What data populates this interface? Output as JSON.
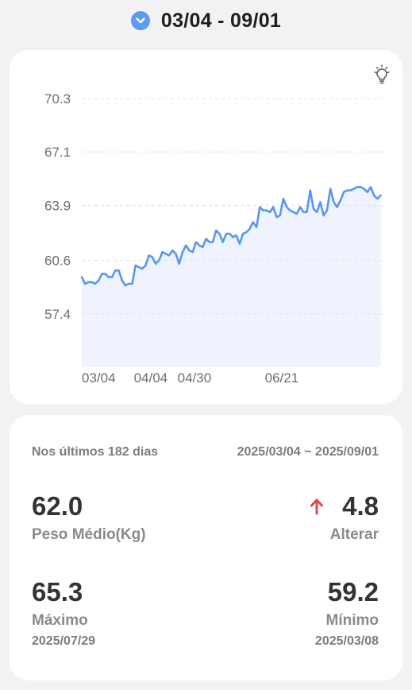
{
  "header": {
    "range_title": "03/04 - 09/01",
    "toggle_icon": "chevron-down-icon",
    "accent_color": "#5d9bf3"
  },
  "chart": {
    "tip_icon": "lightbulb-icon"
  },
  "chart_data": {
    "type": "area",
    "title": "",
    "xlabel": "",
    "ylabel": "",
    "y_ticks": [
      "70.3",
      "67.1",
      "63.9",
      "60.6",
      "57.4"
    ],
    "x_ticks": [
      "03/04",
      "04/04",
      "04/30",
      "06/21"
    ],
    "ylim": [
      54.2,
      70.3
    ],
    "grid": true,
    "line_color": "#5b96ef",
    "fill_color": "#eef3fd",
    "series": [
      {
        "x": [
          0,
          2,
          4,
          6,
          8,
          10,
          12,
          14,
          16,
          18,
          20,
          22,
          24,
          26,
          28,
          30,
          32,
          34,
          36,
          38,
          40,
          42,
          44,
          46,
          48,
          50,
          52,
          54,
          56,
          58,
          60,
          62,
          64,
          66,
          68,
          70,
          72,
          74,
          76,
          78,
          80,
          82,
          84,
          86,
          88,
          90,
          92,
          94,
          96,
          98,
          100,
          102,
          104,
          106,
          108,
          110,
          112,
          114,
          116,
          118,
          120,
          122,
          124,
          126,
          128,
          130,
          132,
          134,
          136,
          138,
          140,
          142,
          144,
          146,
          148,
          150,
          152,
          154,
          156,
          158,
          160,
          162,
          164,
          166,
          168,
          170,
          172,
          174,
          176,
          178
        ],
        "values": [
          59.6,
          59.2,
          59.3,
          59.3,
          59.2,
          59.4,
          59.8,
          59.8,
          59.6,
          59.6,
          60.0,
          60.0,
          59.4,
          59.1,
          59.2,
          59.2,
          60.3,
          60.2,
          60.1,
          60.3,
          60.9,
          60.8,
          60.4,
          60.6,
          61.1,
          61.0,
          60.9,
          61.2,
          61.0,
          60.4,
          61.1,
          61.5,
          61.2,
          61.1,
          61.7,
          61.5,
          61.4,
          61.9,
          61.7,
          61.7,
          62.4,
          62.2,
          61.7,
          62.2,
          62.2,
          62.0,
          62.1,
          61.6,
          62.2,
          62.3,
          62.5,
          62.9,
          62.6,
          63.8,
          63.6,
          63.6,
          63.5,
          63.8,
          63.2,
          63.3,
          64.3,
          63.8,
          63.6,
          63.5,
          63.4,
          63.8,
          63.5,
          63.5,
          64.8,
          63.7,
          63.5,
          64.1,
          63.3,
          63.6,
          64.9,
          64.1,
          63.8,
          64.2,
          64.7,
          64.8,
          64.8,
          64.9,
          65.0,
          65.0,
          64.9,
          64.7,
          65.0,
          64.5,
          64.3,
          64.5
        ]
      }
    ]
  },
  "stats": {
    "period_label": "Nos últimos 182 dias",
    "date_range": "2025/03/04 ~ 2025/09/01",
    "average_value": "62.0",
    "average_label": "Peso Médio(Kg)",
    "change_value": "4.8",
    "change_label": "Alterar",
    "change_icon": "arrow-up-icon",
    "change_color": "#e8454a",
    "max_value": "65.3",
    "max_label": "Máximo",
    "max_date": "2025/07/29",
    "min_value": "59.2",
    "min_label": "Mínimo",
    "min_date": "2025/03/08"
  }
}
